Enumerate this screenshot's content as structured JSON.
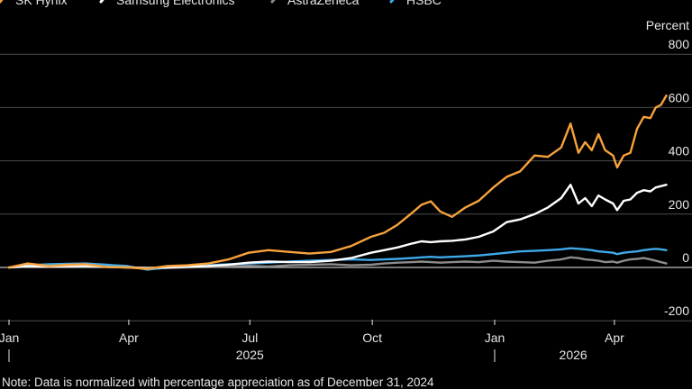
{
  "chart_data": {
    "type": "line",
    "ylabel": "Percent",
    "ylim": [
      -200,
      800
    ],
    "xlim": [
      "2025-01-01",
      "2026-05-13"
    ],
    "grid": true,
    "legend_placement": "top-left",
    "colors": {
      "background": "#000000",
      "grid": "#4d4d4d",
      "zero_line": "#bfbfbf",
      "text": "#e6e6e6"
    },
    "y_ticks": [
      -200,
      0,
      200,
      400,
      600,
      800
    ],
    "x_ticks": [
      {
        "date": "2025-01-01",
        "label": "Jan"
      },
      {
        "date": "2025-04-01",
        "label": "Apr"
      },
      {
        "date": "2025-07-01",
        "label": "Jul"
      },
      {
        "date": "2025-10-01",
        "label": "Oct"
      },
      {
        "date": "2026-01-01",
        "label": "Jan"
      },
      {
        "date": "2026-04-01",
        "label": "Apr"
      }
    ],
    "year_labels": [
      {
        "date": "2025-07-01",
        "label": "2025"
      },
      {
        "date": "2026-03-01",
        "label": "2026"
      }
    ],
    "series": [
      {
        "name": "SK Hynix",
        "color": "#f7a23c",
        "points": [
          [
            "2025-01-01",
            0
          ],
          [
            "2025-01-15",
            15
          ],
          [
            "2025-01-31",
            5
          ],
          [
            "2025-02-15",
            10
          ],
          [
            "2025-02-28",
            12
          ],
          [
            "2025-03-15",
            2
          ],
          [
            "2025-03-31",
            0
          ],
          [
            "2025-04-15",
            -5
          ],
          [
            "2025-04-30",
            5
          ],
          [
            "2025-05-15",
            8
          ],
          [
            "2025-05-31",
            15
          ],
          [
            "2025-06-15",
            30
          ],
          [
            "2025-06-30",
            55
          ],
          [
            "2025-07-15",
            65
          ],
          [
            "2025-07-31",
            58
          ],
          [
            "2025-08-15",
            52
          ],
          [
            "2025-08-31",
            58
          ],
          [
            "2025-09-15",
            80
          ],
          [
            "2025-09-30",
            115
          ],
          [
            "2025-10-10",
            130
          ],
          [
            "2025-10-20",
            160
          ],
          [
            "2025-10-31",
            205
          ],
          [
            "2025-11-07",
            235
          ],
          [
            "2025-11-14",
            248
          ],
          [
            "2025-11-21",
            210
          ],
          [
            "2025-11-30",
            190
          ],
          [
            "2025-12-10",
            225
          ],
          [
            "2025-12-20",
            250
          ],
          [
            "2025-12-31",
            300
          ],
          [
            "2026-01-10",
            340
          ],
          [
            "2026-01-20",
            360
          ],
          [
            "2026-01-31",
            420
          ],
          [
            "2026-02-10",
            415
          ],
          [
            "2026-02-20",
            450
          ],
          [
            "2026-02-27",
            540
          ],
          [
            "2026-03-05",
            430
          ],
          [
            "2026-03-10",
            470
          ],
          [
            "2026-03-15",
            440
          ],
          [
            "2026-03-20",
            500
          ],
          [
            "2026-03-25",
            440
          ],
          [
            "2026-03-31",
            420
          ],
          [
            "2026-04-03",
            375
          ],
          [
            "2026-04-08",
            420
          ],
          [
            "2026-04-13",
            430
          ],
          [
            "2026-04-18",
            520
          ],
          [
            "2026-04-23",
            565
          ],
          [
            "2026-04-28",
            560
          ],
          [
            "2026-05-02",
            600
          ],
          [
            "2026-05-06",
            610
          ],
          [
            "2026-05-10",
            645
          ]
        ]
      },
      {
        "name": "Samsung Electronics",
        "color": "#ffffff",
        "points": [
          [
            "2025-01-01",
            0
          ],
          [
            "2025-01-15",
            5
          ],
          [
            "2025-01-31",
            3
          ],
          [
            "2025-02-15",
            5
          ],
          [
            "2025-02-28",
            6
          ],
          [
            "2025-03-15",
            2
          ],
          [
            "2025-03-31",
            0
          ],
          [
            "2025-04-15",
            -2
          ],
          [
            "2025-04-30",
            0
          ],
          [
            "2025-05-15",
            3
          ],
          [
            "2025-05-31",
            5
          ],
          [
            "2025-06-15",
            10
          ],
          [
            "2025-06-30",
            18
          ],
          [
            "2025-07-15",
            22
          ],
          [
            "2025-07-31",
            20
          ],
          [
            "2025-08-15",
            20
          ],
          [
            "2025-08-31",
            25
          ],
          [
            "2025-09-15",
            35
          ],
          [
            "2025-09-30",
            55
          ],
          [
            "2025-10-10",
            65
          ],
          [
            "2025-10-20",
            75
          ],
          [
            "2025-10-31",
            90
          ],
          [
            "2025-11-07",
            98
          ],
          [
            "2025-11-14",
            95
          ],
          [
            "2025-11-21",
            98
          ],
          [
            "2025-11-30",
            100
          ],
          [
            "2025-12-10",
            105
          ],
          [
            "2025-12-20",
            115
          ],
          [
            "2025-12-31",
            135
          ],
          [
            "2026-01-10",
            170
          ],
          [
            "2026-01-20",
            180
          ],
          [
            "2026-01-31",
            200
          ],
          [
            "2026-02-10",
            225
          ],
          [
            "2026-02-20",
            260
          ],
          [
            "2026-02-27",
            310
          ],
          [
            "2026-03-05",
            240
          ],
          [
            "2026-03-10",
            260
          ],
          [
            "2026-03-15",
            230
          ],
          [
            "2026-03-20",
            270
          ],
          [
            "2026-03-25",
            255
          ],
          [
            "2026-03-31",
            240
          ],
          [
            "2026-04-03",
            215
          ],
          [
            "2026-04-08",
            250
          ],
          [
            "2026-04-13",
            255
          ],
          [
            "2026-04-18",
            280
          ],
          [
            "2026-04-23",
            290
          ],
          [
            "2026-04-28",
            285
          ],
          [
            "2026-05-02",
            300
          ],
          [
            "2026-05-06",
            305
          ],
          [
            "2026-05-10",
            310
          ]
        ]
      },
      {
        "name": "AstraZeneca",
        "color": "#8c8c8c",
        "points": [
          [
            "2025-01-01",
            0
          ],
          [
            "2025-01-15",
            4
          ],
          [
            "2025-01-31",
            6
          ],
          [
            "2025-02-15",
            8
          ],
          [
            "2025-02-28",
            10
          ],
          [
            "2025-03-15",
            5
          ],
          [
            "2025-03-31",
            2
          ],
          [
            "2025-04-15",
            -5
          ],
          [
            "2025-04-30",
            -2
          ],
          [
            "2025-05-15",
            0
          ],
          [
            "2025-05-31",
            2
          ],
          [
            "2025-06-15",
            4
          ],
          [
            "2025-06-30",
            6
          ],
          [
            "2025-07-15",
            3
          ],
          [
            "2025-07-31",
            8
          ],
          [
            "2025-08-15",
            10
          ],
          [
            "2025-08-31",
            12
          ],
          [
            "2025-09-15",
            8
          ],
          [
            "2025-09-30",
            10
          ],
          [
            "2025-10-10",
            15
          ],
          [
            "2025-10-20",
            18
          ],
          [
            "2025-10-31",
            20
          ],
          [
            "2025-11-07",
            22
          ],
          [
            "2025-11-14",
            20
          ],
          [
            "2025-11-21",
            18
          ],
          [
            "2025-11-30",
            20
          ],
          [
            "2025-12-10",
            22
          ],
          [
            "2025-12-20",
            20
          ],
          [
            "2025-12-31",
            25
          ],
          [
            "2026-01-10",
            22
          ],
          [
            "2026-01-20",
            20
          ],
          [
            "2026-01-31",
            18
          ],
          [
            "2026-02-10",
            25
          ],
          [
            "2026-02-20",
            30
          ],
          [
            "2026-02-27",
            38
          ],
          [
            "2026-03-05",
            35
          ],
          [
            "2026-03-10",
            30
          ],
          [
            "2026-03-15",
            28
          ],
          [
            "2026-03-20",
            25
          ],
          [
            "2026-03-25",
            20
          ],
          [
            "2026-03-31",
            22
          ],
          [
            "2026-04-03",
            18
          ],
          [
            "2026-04-08",
            25
          ],
          [
            "2026-04-13",
            30
          ],
          [
            "2026-04-18",
            32
          ],
          [
            "2026-04-23",
            35
          ],
          [
            "2026-04-28",
            30
          ],
          [
            "2026-05-02",
            25
          ],
          [
            "2026-05-06",
            20
          ],
          [
            "2026-05-10",
            15
          ]
        ]
      },
      {
        "name": "HSBC",
        "color": "#3fa9e8",
        "points": [
          [
            "2025-01-01",
            0
          ],
          [
            "2025-01-15",
            8
          ],
          [
            "2025-01-31",
            12
          ],
          [
            "2025-02-15",
            14
          ],
          [
            "2025-02-28",
            15
          ],
          [
            "2025-03-15",
            10
          ],
          [
            "2025-03-31",
            5
          ],
          [
            "2025-04-15",
            -8
          ],
          [
            "2025-04-30",
            0
          ],
          [
            "2025-05-15",
            5
          ],
          [
            "2025-05-31",
            8
          ],
          [
            "2025-06-15",
            12
          ],
          [
            "2025-06-30",
            15
          ],
          [
            "2025-07-15",
            18
          ],
          [
            "2025-07-31",
            22
          ],
          [
            "2025-08-15",
            25
          ],
          [
            "2025-08-31",
            28
          ],
          [
            "2025-09-15",
            30
          ],
          [
            "2025-09-30",
            28
          ],
          [
            "2025-10-10",
            30
          ],
          [
            "2025-10-20",
            32
          ],
          [
            "2025-10-31",
            35
          ],
          [
            "2025-11-07",
            38
          ],
          [
            "2025-11-14",
            40
          ],
          [
            "2025-11-21",
            38
          ],
          [
            "2025-11-30",
            40
          ],
          [
            "2025-12-10",
            42
          ],
          [
            "2025-12-20",
            45
          ],
          [
            "2025-12-31",
            50
          ],
          [
            "2026-01-10",
            55
          ],
          [
            "2026-01-20",
            60
          ],
          [
            "2026-01-31",
            62
          ],
          [
            "2026-02-10",
            65
          ],
          [
            "2026-02-20",
            68
          ],
          [
            "2026-02-27",
            72
          ],
          [
            "2026-03-05",
            70
          ],
          [
            "2026-03-10",
            68
          ],
          [
            "2026-03-15",
            65
          ],
          [
            "2026-03-20",
            60
          ],
          [
            "2026-03-25",
            58
          ],
          [
            "2026-03-31",
            55
          ],
          [
            "2026-04-03",
            50
          ],
          [
            "2026-04-08",
            55
          ],
          [
            "2026-04-13",
            58
          ],
          [
            "2026-04-18",
            60
          ],
          [
            "2026-04-23",
            65
          ],
          [
            "2026-04-28",
            68
          ],
          [
            "2026-05-02",
            70
          ],
          [
            "2026-05-06",
            68
          ],
          [
            "2026-05-10",
            65
          ]
        ]
      }
    ]
  },
  "note": "Note: Data is normalized with percentage appreciation as of December 31, 2024"
}
